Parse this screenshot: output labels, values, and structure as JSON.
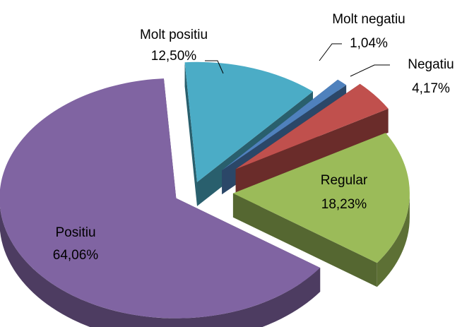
{
  "chart_data": {
    "type": "pie",
    "categories": [
      "Molt positiu",
      "Molt negatiu",
      "Negatiu",
      "Regular",
      "Positiu"
    ],
    "values": [
      12.5,
      1.04,
      4.17,
      18.23,
      64.06
    ],
    "value_labels": [
      "12,50%",
      "1,04%",
      "4,17%",
      "18,23%",
      "64,06%"
    ],
    "colors": [
      "#4bacc6",
      "#4f81bd",
      "#c0504d",
      "#9bbb59",
      "#8064a2"
    ]
  }
}
